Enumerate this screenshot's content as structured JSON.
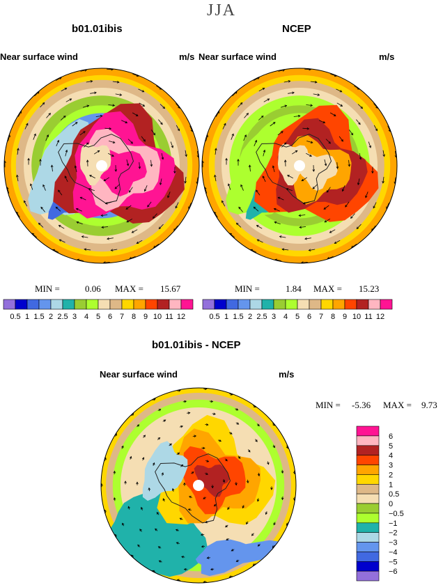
{
  "season": "JJA",
  "panels": [
    {
      "title": "b01.01ibis",
      "field": "Near surface wind",
      "units": "m/s",
      "min_label": "MIN =",
      "min_value": "0.06",
      "max_label": "MAX =",
      "max_value": "15.67"
    },
    {
      "title": "NCEP",
      "field": "Near surface wind",
      "units": "m/s",
      "min_label": "MIN =",
      "min_value": "1.84",
      "max_label": "MAX =",
      "max_value": "15.23"
    }
  ],
  "diff_panel": {
    "title": "b01.01ibis - NCEP",
    "field": "Near surface wind",
    "units": "m/s",
    "min_label": "MIN =",
    "min_value": "-5.36",
    "max_label": "MAX =",
    "max_value": "9.73"
  },
  "chart_data": [
    {
      "type": "heatmap",
      "title": "b01.01ibis",
      "subtitle": "Near surface wind (m/s), JJA",
      "colorbar": {
        "levels": [
          "0.5",
          "1",
          "1.5",
          "2",
          "2.5",
          "3",
          "4",
          "5",
          "6",
          "7",
          "8",
          "9",
          "10",
          "11",
          "12"
        ],
        "colors": [
          "#9370db",
          "#0000cd",
          "#4169e1",
          "#6495ed",
          "#add8e6",
          "#20b2aa",
          "#9acd32",
          "#adff2f",
          "#f5deb3",
          "#deb887",
          "#ffd700",
          "#ffa500",
          "#ff4500",
          "#b22222",
          "#ffb6c1",
          "#ff1493"
        ]
      },
      "min": 0.06,
      "max": 15.67
    },
    {
      "type": "heatmap",
      "title": "NCEP",
      "subtitle": "Near surface wind (m/s), JJA",
      "colorbar": {
        "levels": [
          "0.5",
          "1",
          "1.5",
          "2",
          "2.5",
          "3",
          "4",
          "5",
          "6",
          "7",
          "8",
          "9",
          "10",
          "11",
          "12"
        ],
        "colors": [
          "#9370db",
          "#0000cd",
          "#4169e1",
          "#6495ed",
          "#add8e6",
          "#20b2aa",
          "#9acd32",
          "#adff2f",
          "#f5deb3",
          "#deb887",
          "#ffd700",
          "#ffa500",
          "#ff4500",
          "#b22222",
          "#ffb6c1",
          "#ff1493"
        ]
      },
      "min": 1.84,
      "max": 15.23
    },
    {
      "type": "heatmap",
      "title": "b01.01ibis - NCEP",
      "subtitle": "Near surface wind (m/s) difference, JJA",
      "colorbar": {
        "levels": [
          "6",
          "5",
          "4",
          "3",
          "2",
          "1",
          "0.5",
          "0",
          "−0.5",
          "−1",
          "−2",
          "−3",
          "−4",
          "−5",
          "−6"
        ],
        "colors": [
          "#ff1493",
          "#ffb6c1",
          "#b22222",
          "#ff4500",
          "#ffa500",
          "#ffd700",
          "#deb887",
          "#f5deb3",
          "#9acd32",
          "#adff2f",
          "#20b2aa",
          "#add8e6",
          "#6495ed",
          "#4169e1",
          "#0000cd",
          "#9370db"
        ]
      },
      "min": -5.36,
      "max": 9.73
    }
  ]
}
